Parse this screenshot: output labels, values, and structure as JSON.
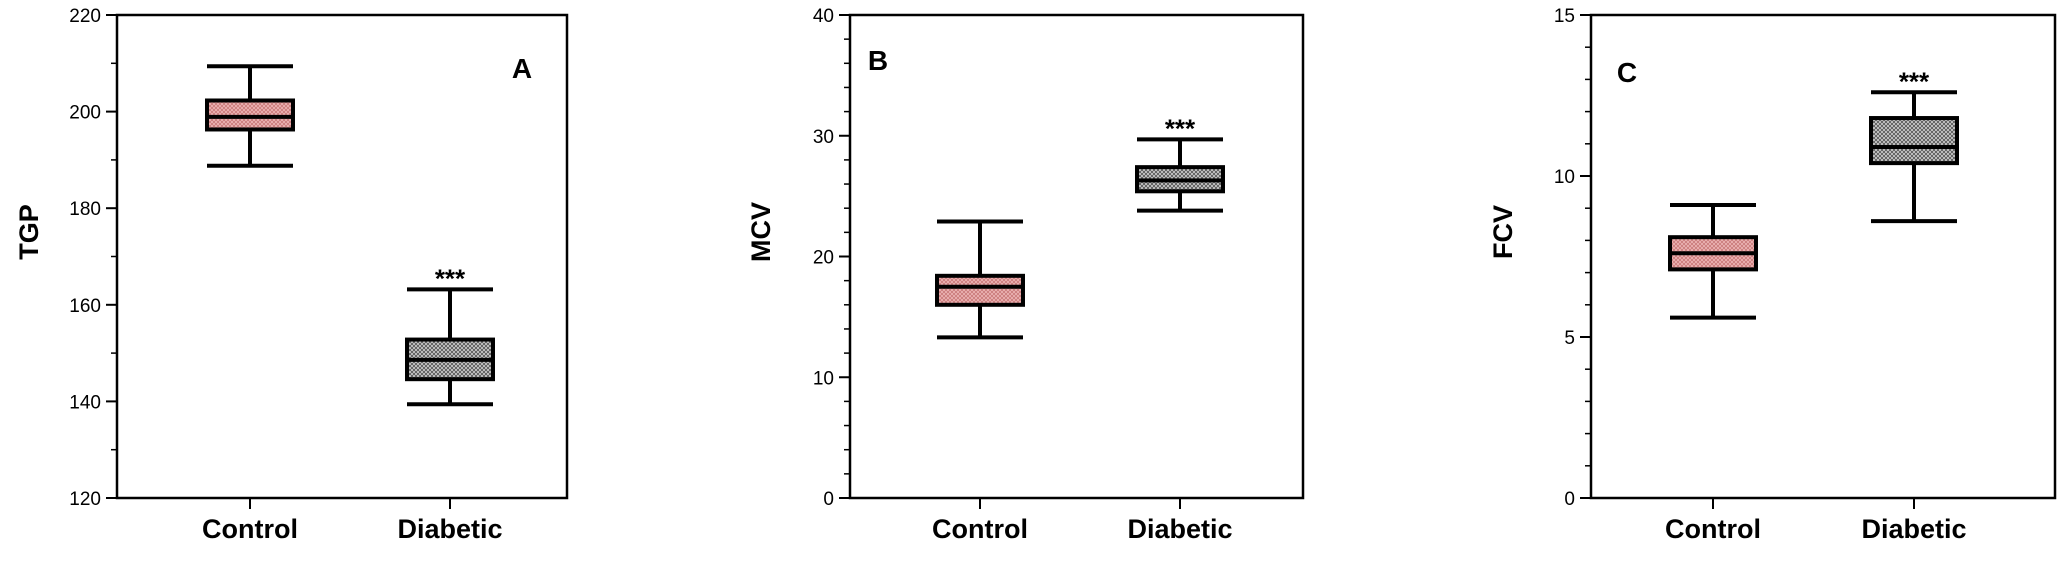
{
  "figure": {
    "panels_count": 3
  },
  "chart_data": [
    {
      "type": "box",
      "panel_label": "A",
      "title": "",
      "xlabel": "",
      "ylabel": "TGP",
      "categories": [
        "Control",
        "Diabetic"
      ],
      "ylim": [
        120,
        220
      ],
      "yticks": [
        120,
        140,
        160,
        180,
        200,
        220
      ],
      "yticks_text": [
        "120",
        "140",
        "160",
        "180",
        "200",
        "220"
      ],
      "minor_tick_step": 10,
      "boxes": [
        {
          "name": "Control",
          "min": 188.8,
          "q1": 196.3,
          "median": 198.9,
          "q3": 202.3,
          "max": 209.4,
          "fill": "#e8a8a8",
          "significance": ""
        },
        {
          "name": "Diabetic",
          "min": 139.4,
          "q1": 144.6,
          "median": 148.6,
          "q3": 152.8,
          "max": 163.2,
          "fill": "#b8b8b8",
          "significance": "***"
        }
      ],
      "label_corner": "top-right"
    },
    {
      "type": "box",
      "panel_label": "B",
      "title": "",
      "xlabel": "",
      "ylabel": "MCV",
      "categories": [
        "Control",
        "Diabetic"
      ],
      "ylim": [
        0,
        40
      ],
      "yticks": [
        0,
        10,
        20,
        30,
        40
      ],
      "yticks_text": [
        "0",
        "10",
        "20",
        "30",
        "40"
      ],
      "minor_tick_step": 2,
      "boxes": [
        {
          "name": "Control",
          "min": 13.3,
          "q1": 16.0,
          "median": 17.5,
          "q3": 18.4,
          "max": 22.9,
          "fill": "#e8a8a8",
          "significance": ""
        },
        {
          "name": "Diabetic",
          "min": 23.8,
          "q1": 25.4,
          "median": 26.3,
          "q3": 27.4,
          "max": 29.7,
          "fill": "#b8b8b8",
          "significance": "***"
        }
      ],
      "label_corner": "top-left"
    },
    {
      "type": "box",
      "panel_label": "C",
      "title": "",
      "xlabel": "",
      "ylabel": "FCV",
      "categories": [
        "Control",
        "Diabetic"
      ],
      "ylim": [
        0,
        15
      ],
      "yticks": [
        0,
        5,
        10,
        15
      ],
      "yticks_text": [
        "0",
        "5",
        "10",
        "15"
      ],
      "minor_tick_step": 1,
      "boxes": [
        {
          "name": "Control",
          "min": 5.6,
          "q1": 7.1,
          "median": 7.6,
          "q3": 8.1,
          "max": 9.1,
          "fill": "#e8a8a8",
          "significance": ""
        },
        {
          "name": "Diabetic",
          "min": 8.6,
          "q1": 10.4,
          "median": 10.9,
          "q3": 11.8,
          "max": 12.6,
          "fill": "#b8b8b8",
          "significance": "***"
        }
      ],
      "label_corner": "top-left"
    }
  ]
}
